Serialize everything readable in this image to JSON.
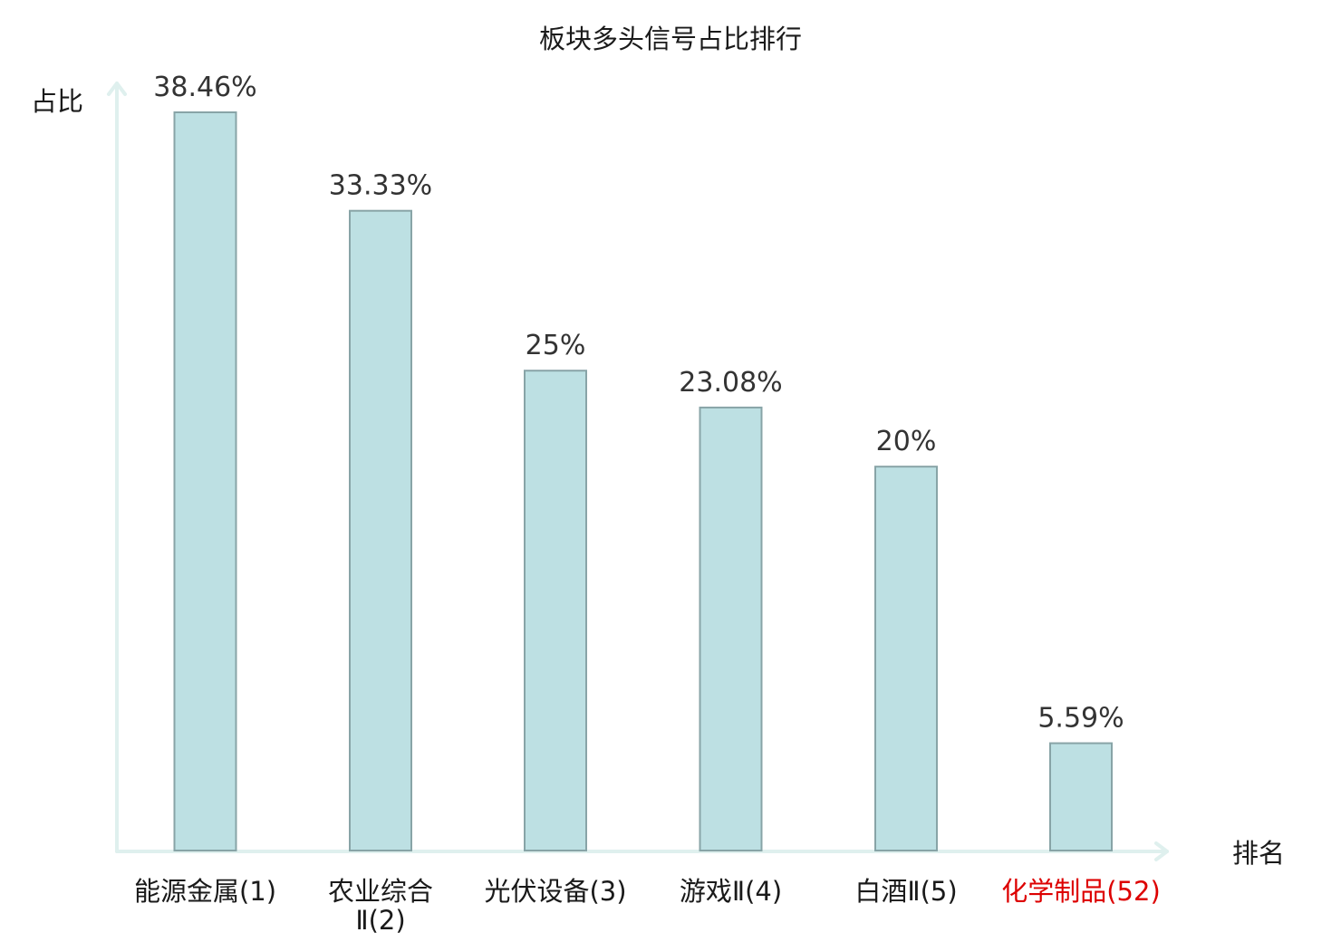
{
  "chart_data": {
    "type": "bar",
    "title": "板块多头信号占比排行",
    "ylabel": "占比",
    "xlabel": "排名",
    "ylim": [
      0,
      40
    ],
    "grid": false,
    "legend": "none",
    "categories": [
      "能源金属(1)",
      "农业综合Ⅱ(2)",
      "光伏设备(3)",
      "游戏Ⅱ(4)",
      "白酒Ⅱ(5)",
      "化学制品(52)"
    ],
    "category_lines": [
      [
        "能源金属(1)"
      ],
      [
        "农业综合",
        "Ⅱ(2)"
      ],
      [
        "光伏设备(3)"
      ],
      [
        "游戏Ⅱ(4)"
      ],
      [
        "白酒Ⅱ(5)"
      ],
      [
        "化学制品(52)"
      ]
    ],
    "values": [
      38.46,
      33.33,
      25,
      23.08,
      20,
      5.59
    ],
    "value_labels": [
      "38.46%",
      "33.33%",
      "25%",
      "23.08%",
      "20%",
      "5.59%"
    ],
    "highlight_index": 5,
    "colors": {
      "bar_fill": "#bde0e3",
      "bar_stroke": "#88a4a7",
      "axis": "#dff0ee",
      "highlight_text": "#dd0000"
    }
  }
}
